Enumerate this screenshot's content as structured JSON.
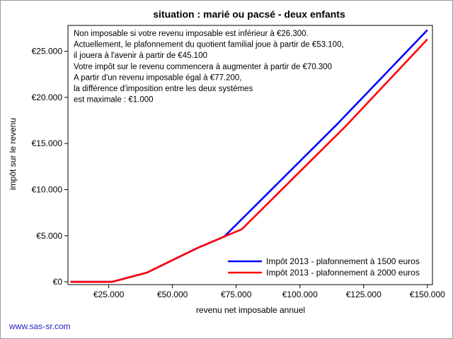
{
  "chart_data": {
    "type": "line",
    "title": "situation : marié ou pacsé - deux enfants",
    "xlabel": "revenu net imposable annuel",
    "ylabel": "impôt sur le revenu",
    "xlim": [
      9000,
      152000
    ],
    "ylim": [
      -300,
      27800
    ],
    "x_ticks": [
      25000,
      50000,
      75000,
      100000,
      125000,
      150000
    ],
    "x_tick_labels": [
      "€25.000",
      "€50.000",
      "€75.000",
      "€100.000",
      "€125.000",
      "€150.000"
    ],
    "y_ticks": [
      0,
      5000,
      10000,
      15000,
      20000,
      25000
    ],
    "y_tick_labels": [
      "€0",
      "€5.000",
      "€10.000",
      "€15.000",
      "€20.000",
      "€25.000"
    ],
    "grid": false,
    "legend_position": "bottom-right",
    "series": [
      {
        "name": "Impôt 2013 - plafonnement à 1500 euros",
        "color": "#0000ff",
        "x": [
          10000,
          26300,
          40000,
          60000,
          70300,
          115000,
          150000
        ],
        "y": [
          0,
          0,
          1000,
          3700,
          4900,
          17200,
          27300
        ]
      },
      {
        "name": "Impôt 2013 - plafonnement à 2000 euros",
        "color": "#ff0000",
        "x": [
          10000,
          26300,
          40000,
          60000,
          70300,
          77200,
          118000,
          150000
        ],
        "y": [
          0,
          0,
          1000,
          3700,
          4900,
          5700,
          16900,
          26300
        ]
      }
    ],
    "annotation_lines": [
      "Non imposable si votre revenu imposable est inférieur à €26.300.",
      "Actuellement, le plafonnement du quotient familial joue à partir de €53.100,",
      "il jouera à l'avenir à partir de €45.100",
      "Votre impôt sur le revenu commencera à augmenter à partir de €70.300",
      "A partir d'un revenu imposable égal à €77.200,",
      "la différence d'imposition entre les deux systèmes",
      "est maximale : €1.000"
    ]
  },
  "footer": {
    "link_text": "www.sas-sr.com"
  }
}
